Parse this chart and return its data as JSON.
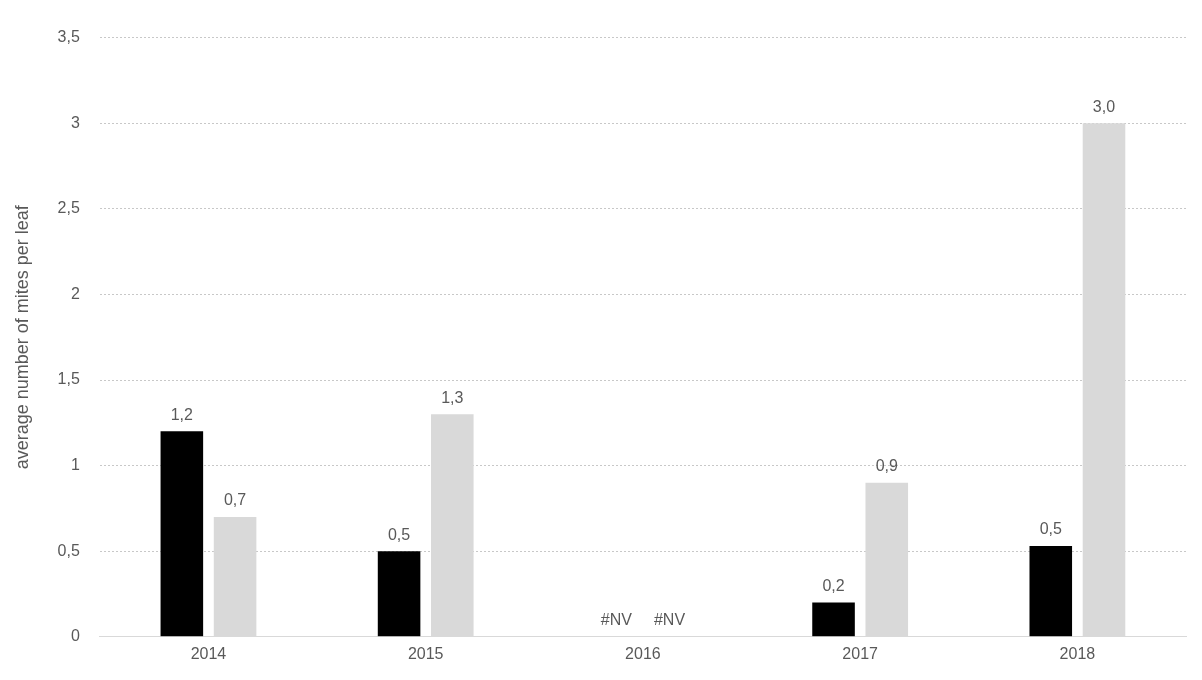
{
  "chart_data": {
    "type": "bar",
    "ylabel": "average number of mites per leaf",
    "categories": [
      "2014",
      "2015",
      "2016",
      "2017",
      "2018"
    ],
    "series": [
      {
        "color": "#000000",
        "values": [
          1.2,
          0.5,
          null,
          0.2,
          0.53
        ],
        "value_labels": [
          "1,2",
          "0,5",
          "#NV",
          "0,2",
          "0,5"
        ]
      },
      {
        "color": "#d9d9d9",
        "values": [
          0.7,
          1.3,
          null,
          0.9,
          3.0
        ],
        "value_labels": [
          "0,7",
          "1,3",
          "#NV",
          "0,9",
          "3,0"
        ]
      }
    ],
    "ylim": [
      0,
      3.5
    ],
    "yticks": [
      0,
      {
        "value": 0.5,
        "label": "0,5"
      },
      1,
      {
        "value": 1.5,
        "label": "1,5"
      },
      2,
      {
        "value": 2.5,
        "label": "2,5"
      },
      3,
      {
        "value": 3.5,
        "label": "3,5"
      }
    ],
    "grid": "y",
    "legend": false
  }
}
